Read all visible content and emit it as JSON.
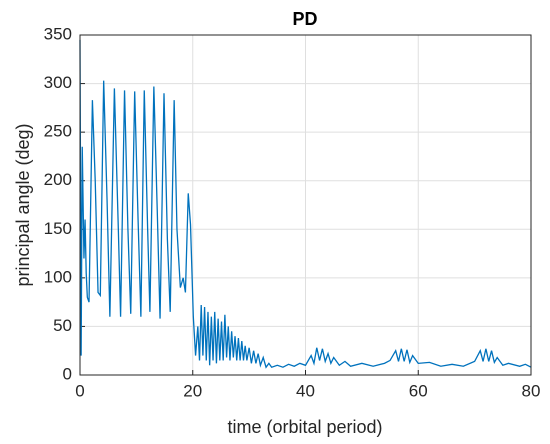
{
  "chart_data": {
    "type": "line",
    "title": "PD",
    "x_label": "time (orbital period)",
    "y_label": "principal angle (deg)",
    "x": [
      0,
      0.2,
      0.4,
      0.7,
      0.9,
      1.1,
      1.3,
      1.6,
      2.2,
      2.7,
      3.2,
      3.6,
      4.2,
      4.8,
      5.3,
      6.1,
      6.8,
      7.2,
      7.9,
      8.5,
      9.0,
      9.7,
      10.3,
      10.8,
      11.4,
      12.0,
      12.4,
      13.1,
      13.7,
      14.2,
      14.9,
      15.5,
      16.0,
      16.7,
      17.2,
      17.8,
      18.3,
      18.7,
      19.2,
      19.6,
      20.1,
      20.5,
      20.9,
      21.2,
      21.5,
      21.8,
      22.1,
      22.4,
      22.7,
      23,
      23.3,
      23.6,
      23.9,
      24.2,
      24.5,
      24.8,
      25.1,
      25.4,
      25.7,
      26,
      26.3,
      26.6,
      26.9,
      27.2,
      27.5,
      27.8,
      28.1,
      28.4,
      28.7,
      29,
      29.3,
      29.6,
      30,
      30.4,
      30.8,
      31.2,
      31.6,
      32,
      32.5,
      33,
      33.5,
      34,
      35,
      36,
      37,
      38,
      39,
      40,
      41,
      41.5,
      42,
      42.5,
      43,
      43.5,
      44,
      44.5,
      45,
      46,
      47,
      48,
      50,
      52,
      54,
      55,
      56,
      56.5,
      57,
      57.5,
      58,
      58.5,
      59,
      60,
      62,
      64,
      66,
      68,
      70,
      71,
      71.5,
      72,
      72.5,
      73,
      73.5,
      74,
      75,
      76,
      78,
      79,
      80
    ],
    "values": [
      345,
      20,
      235,
      120,
      160,
      105,
      80,
      75,
      283,
      200,
      85,
      82,
      303,
      180,
      60,
      295,
      150,
      60,
      293,
      150,
      63,
      292,
      160,
      60,
      293,
      150,
      65,
      297,
      170,
      58,
      290,
      140,
      65,
      283,
      150,
      90,
      100,
      85,
      187,
      155,
      60,
      20,
      50,
      15,
      72,
      20,
      70,
      15,
      65,
      10,
      60,
      15,
      65,
      12,
      58,
      15,
      55,
      15,
      62,
      18,
      50,
      15,
      45,
      18,
      40,
      15,
      38,
      15,
      35,
      15,
      30,
      15,
      28,
      12,
      25,
      12,
      22,
      10,
      18,
      8,
      12,
      8,
      10,
      8,
      11,
      9,
      12,
      10,
      20,
      12,
      28,
      15,
      27,
      14,
      22,
      12,
      18,
      10,
      14,
      9,
      12,
      9,
      12,
      15,
      25,
      14,
      27,
      14,
      26,
      13,
      20,
      12,
      13,
      9,
      11,
      9,
      14,
      25,
      14,
      27,
      14,
      25,
      13,
      18,
      10,
      12,
      9,
      11,
      8
    ],
    "color": "#0072bd",
    "xlim": [
      0,
      80
    ],
    "xticks": [
      0,
      20,
      40,
      60,
      80
    ],
    "ylim": [
      0,
      350
    ],
    "yticks": [
      0,
      50,
      100,
      150,
      200,
      250,
      300,
      350
    ],
    "grid": true
  }
}
